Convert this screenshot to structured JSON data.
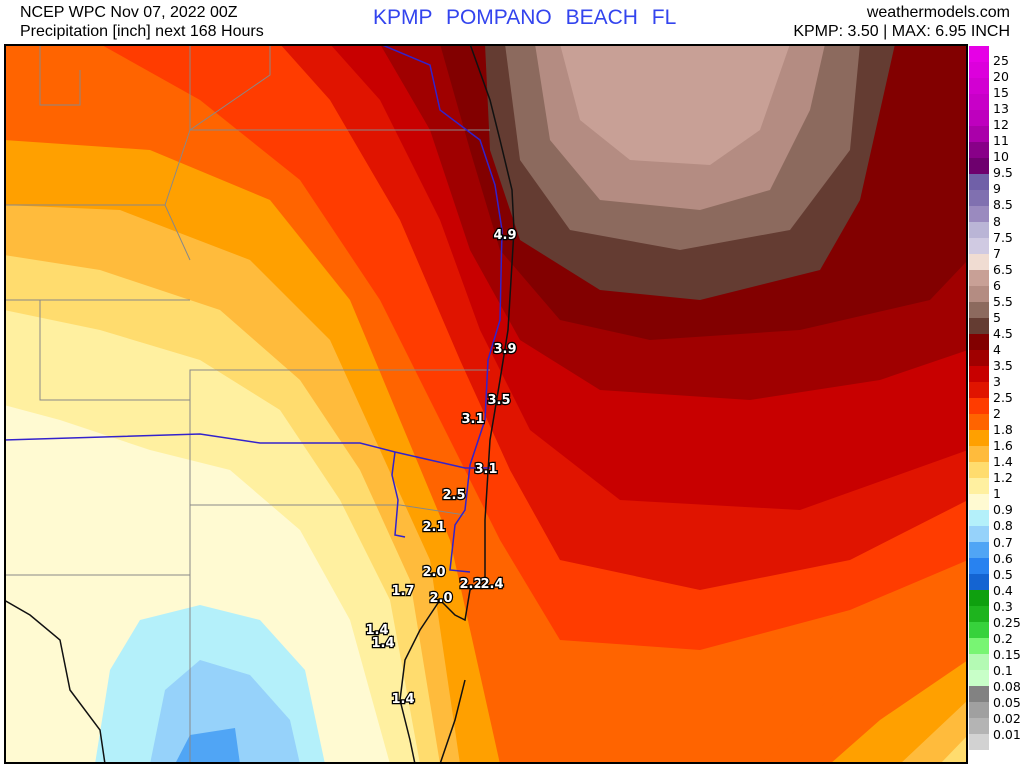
{
  "header": {
    "line1": "NCEP WPC Nov 07, 2022 00Z",
    "line2": "Precipitation [inch] next 168 Hours",
    "station_title": "KPMP   POMPANO BEACH   FL",
    "site": "weathermodels.com",
    "summary": "KPMP: 3.50 | MAX: 6.95 INCH"
  },
  "legend": {
    "colors": [
      "#e600e6",
      "#dc00dc",
      "#d200d2",
      "#c800c8",
      "#be00be",
      "#aa00aa",
      "#880088",
      "#6e006e",
      "#7060a8",
      "#8070b0",
      "#9a8abf",
      "#bab5d6",
      "#d0cae2",
      "#f0dcd2",
      "#c8a096",
      "#b48c82",
      "#8c6a5e",
      "#643c32",
      "#820000",
      "#a00000",
      "#c80000",
      "#e01400",
      "#ff3c00",
      "#ff6400",
      "#ffa000",
      "#ffbb3c",
      "#ffdc6e",
      "#fff0a0",
      "#fffad2",
      "#b4f0fa",
      "#96d2fa",
      "#50a5f5",
      "#2882f0",
      "#1464d2",
      "#0fa00f",
      "#1eb41e",
      "#37d23c",
      "#78f573",
      "#b4fab4",
      "#c8ffc8",
      "#828282",
      "#a0a0a0",
      "#b4b4b4",
      "#d2d2d2"
    ],
    "labels": [
      "25",
      "20",
      "15",
      "13",
      "12",
      "11",
      "10",
      "9.5",
      "9",
      "8.5",
      "8",
      "7.5",
      "7",
      "6.5",
      "6",
      "5.5",
      "5",
      "4.5",
      "4",
      "3.5",
      "3",
      "2.5",
      "2",
      "1.8",
      "1.6",
      "1.4",
      "1.2",
      "1",
      "0.9",
      "0.8",
      "0.7",
      "0.6",
      "0.5",
      "0.4",
      "0.3",
      "0.25",
      "0.2",
      "0.15",
      "0.1",
      "0.08",
      "0.05",
      "0.02",
      "0.01"
    ]
  },
  "stations": [
    {
      "v": "4.9",
      "x": 505,
      "y": 190
    },
    {
      "v": "3.9",
      "x": 505,
      "y": 304
    },
    {
      "v": "3.5",
      "x": 499,
      "y": 355
    },
    {
      "v": "3.1",
      "x": 473,
      "y": 374
    },
    {
      "v": "3.1",
      "x": 486,
      "y": 424
    },
    {
      "v": "2.5",
      "x": 454,
      "y": 450
    },
    {
      "v": "2.1",
      "x": 434,
      "y": 482
    },
    {
      "v": "2.0",
      "x": 434,
      "y": 527
    },
    {
      "v": "2.2",
      "x": 471,
      "y": 539
    },
    {
      "v": "2.4",
      "x": 492,
      "y": 539
    },
    {
      "v": "2.0",
      "x": 441,
      "y": 553
    },
    {
      "v": "1.7",
      "x": 403,
      "y": 546
    },
    {
      "v": "1.4",
      "x": 377,
      "y": 585
    },
    {
      "v": "1.4",
      "x": 383,
      "y": 598
    },
    {
      "v": "1.4",
      "x": 403,
      "y": 654
    }
  ]
}
